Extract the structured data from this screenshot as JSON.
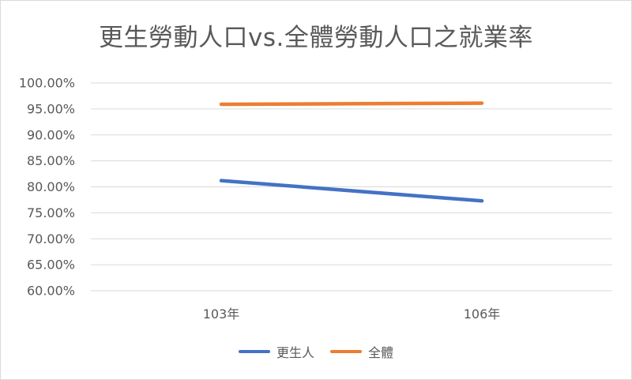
{
  "chart_data": {
    "type": "line",
    "title": "更生勞動人口vs.全體勞動人口之就業率",
    "categories": [
      "103年",
      "106年"
    ],
    "series": [
      {
        "name": "更生人",
        "values": [
          81.2,
          77.3
        ],
        "color": "#4472C4"
      },
      {
        "name": "全體",
        "values": [
          95.9,
          96.1
        ],
        "color": "#ED7D31"
      }
    ],
    "ylim": [
      60,
      100
    ],
    "yticks": [
      60,
      65,
      70,
      75,
      80,
      85,
      90,
      95,
      100
    ],
    "ytick_labels": [
      "60.00%",
      "65.00%",
      "70.00%",
      "75.00%",
      "80.00%",
      "85.00%",
      "90.00%",
      "95.00%",
      "100.00%"
    ],
    "grid": true,
    "legend": "bottom"
  }
}
